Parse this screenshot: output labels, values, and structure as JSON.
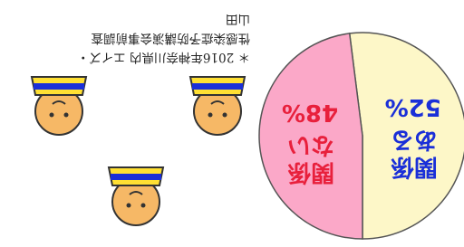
{
  "chart_data": {
    "type": "pie",
    "categories": [
      "関係ある",
      "関係ない"
    ],
    "values": [
      52,
      48
    ],
    "value_labels": [
      "52%",
      "48%"
    ],
    "colors": [
      "#fdf7c8",
      "#fba8c8"
    ],
    "label_colors": [
      "#1a2fd8",
      "#e8203c"
    ],
    "note": [
      "＊ 2016年神奈川県内 エイズ・",
      "性感染症予防講演会事前調査",
      "山田"
    ]
  }
}
